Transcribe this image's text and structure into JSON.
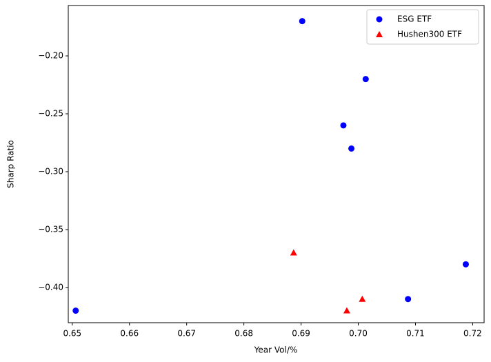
{
  "chart_data": {
    "type": "scatter",
    "x_label": "Year Vol/%",
    "y_label": "Sharp Ratio",
    "xlim": [
      0.6493,
      0.722
    ],
    "ylim": [
      -0.4304,
      -0.1565
    ],
    "xticks": [
      0.65,
      0.66,
      0.67,
      0.68,
      0.69,
      0.7,
      {
        "value": 0.7,
        "label": "0.70"
      },
      0.71,
      0.72
    ],
    "yticks": [
      {
        "value": -0.2,
        "label": "−0.20"
      },
      {
        "value": -0.25,
        "label": "−0.25"
      },
      {
        "value": -0.3,
        "label": "−0.30"
      },
      {
        "value": -0.35,
        "label": "−0.35"
      },
      {
        "value": -0.4,
        "label": "−0.40"
      }
    ],
    "legend": "upper right",
    "series": [
      {
        "name": "ESG ETF",
        "color": "#0000ff",
        "marker": "circle",
        "x": [
          0.6902,
          0.7013,
          0.6974,
          0.6988,
          0.7188,
          0.7087,
          0.6506
        ],
        "values": [
          -0.17,
          -0.22,
          -0.26,
          -0.28,
          -0.38,
          -0.41,
          -0.42
        ]
      },
      {
        "name": "Hushen300 ETF",
        "color": "#ff0000",
        "marker": "triangle",
        "x": [
          0.6887,
          0.698,
          0.7007
        ],
        "values": [
          -0.37,
          -0.42,
          -0.41
        ]
      }
    ]
  }
}
